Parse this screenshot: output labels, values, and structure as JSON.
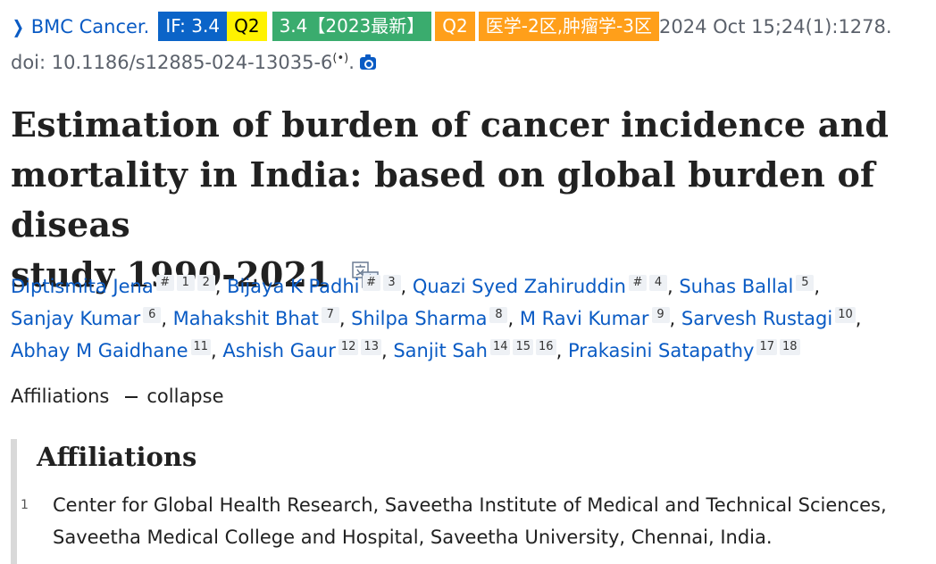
{
  "citation": {
    "journal": "BMC Cancer.",
    "badges": {
      "if": "IF: 3.4",
      "quartile": "Q2",
      "latest": "3.4【2023最新】",
      "quartile2": "Q2",
      "category": "医学-2区,肿瘤学-3区"
    },
    "date": "2024 Oct 15;24(1):1278.",
    "doi": "doi: 10.1186/s12885-024-13035-6",
    "rss_glyph": "(•)",
    "icons": [
      "chevron-right-icon",
      "broadcast-icon",
      "camera-icon",
      "translate-icon"
    ],
    "colors": {
      "link": "#0a5bc4",
      "if_badge": "#0b64c8",
      "q2_badge": "#fff200",
      "latest_badge": "#3aac6e",
      "category_badge": "#ff9f1a"
    }
  },
  "title": {
    "line1": "Estimation of burden of cancer incidence and",
    "line2": "mortality in India: based on global burden of diseas",
    "line3": "study 1990-2021"
  },
  "authors": [
    {
      "name": "Diptismita Jena",
      "sups": [
        "#",
        "1",
        "2"
      ]
    },
    {
      "name": "Bijaya K Padhi",
      "sups": [
        "#",
        "3"
      ]
    },
    {
      "name": "Quazi Syed Zahiruddin",
      "sups": [
        "#",
        "4"
      ]
    },
    {
      "name": "Suhas Ballal",
      "sups": [
        "5"
      ]
    },
    {
      "name": "Sanjay Kumar",
      "sups": [
        "6"
      ]
    },
    {
      "name": "Mahakshit Bhat",
      "sups": [
        "7"
      ]
    },
    {
      "name": "Shilpa Sharma",
      "sups": [
        "8"
      ]
    },
    {
      "name": "M Ravi Kumar",
      "sups": [
        "9"
      ]
    },
    {
      "name": "Sarvesh Rustagi",
      "sups": [
        "10"
      ]
    },
    {
      "name": "Abhay M Gaidhane",
      "sups": [
        "11"
      ]
    },
    {
      "name": "Ashish Gaur",
      "sups": [
        "12",
        "13"
      ]
    },
    {
      "name": "Sanjit Sah",
      "sups": [
        "14",
        "15",
        "16"
      ]
    },
    {
      "name": "Prakasini Satapathy",
      "sups": [
        "17",
        "18"
      ]
    }
  ],
  "affiliations": {
    "toggle_label": "Affiliations",
    "toggle_action": "collapse",
    "heading": "Affiliations",
    "items": [
      {
        "num": "1",
        "text_line1": "Center for Global Health Research, Saveetha Institute of Medical and Technical Sciences,",
        "text_line2": "Saveetha Medical College and Hospital, Saveetha University, Chennai, India."
      }
    ]
  }
}
